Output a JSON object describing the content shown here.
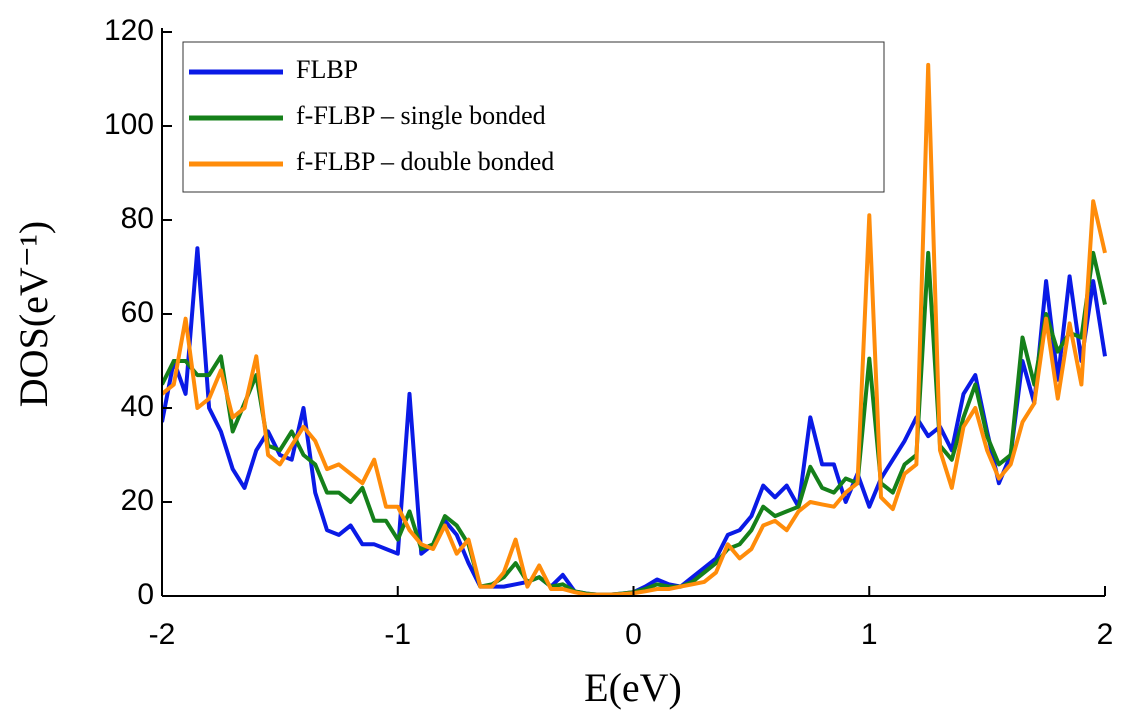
{
  "chart_data": {
    "type": "line",
    "xlabel": "E(eV)",
    "ylabel": "DOS(eV⁻¹)",
    "x": [
      -2,
      -1.95,
      -1.9,
      -1.85,
      -1.8,
      -1.75,
      -1.7,
      -1.65,
      -1.6,
      -1.55,
      -1.5,
      -1.45,
      -1.4,
      -1.35,
      -1.3,
      -1.25,
      -1.2,
      -1.15,
      -1.1,
      -1.05,
      -1,
      -0.95,
      -0.9,
      -0.85,
      -0.8,
      -0.75,
      -0.7,
      -0.65,
      -0.6,
      -0.55,
      -0.5,
      -0.45,
      -0.4,
      -0.35,
      -0.3,
      -0.25,
      -0.2,
      -0.15,
      -0.1,
      -0.05,
      0,
      0.05,
      0.1,
      0.15,
      0.2,
      0.25,
      0.3,
      0.35,
      0.4,
      0.45,
      0.5,
      0.55,
      0.6,
      0.65,
      0.7,
      0.75,
      0.8,
      0.85,
      0.9,
      0.95,
      1,
      1.05,
      1.1,
      1.15,
      1.2,
      1.25,
      1.3,
      1.35,
      1.4,
      1.45,
      1.5,
      1.55,
      1.6,
      1.65,
      1.7,
      1.75,
      1.8,
      1.85,
      1.9,
      1.95,
      2
    ],
    "series": [
      {
        "name": "FLBP",
        "color": "#0a1ae6",
        "values": [
          37,
          50,
          43,
          74,
          40,
          35,
          27,
          23,
          31,
          35,
          30,
          29,
          40,
          22,
          14,
          13,
          15,
          11,
          11,
          10,
          9,
          43,
          9,
          11,
          16,
          13,
          7,
          2,
          2,
          2,
          2.5,
          3,
          4,
          2,
          4.5,
          1,
          0.5,
          0.3,
          0.3,
          0.5,
          0.8,
          2,
          3.5,
          2.5,
          2,
          4,
          6,
          8,
          13,
          14,
          17,
          23.5,
          21,
          23.5,
          19,
          38,
          28,
          28,
          20,
          26,
          19,
          25,
          29,
          33,
          38,
          34,
          36,
          31,
          43,
          47,
          35,
          24,
          30,
          50,
          41,
          67,
          46,
          68,
          50,
          67,
          51
        ]
      },
      {
        "name": "f-FLBP – single bonded",
        "color": "#15801a",
        "values": [
          45,
          50,
          50,
          47,
          47,
          51,
          35,
          41,
          47,
          32,
          31,
          35,
          30,
          28,
          22,
          22,
          20,
          23,
          16,
          16,
          12,
          18,
          10,
          11,
          17,
          15,
          11,
          2,
          2.5,
          4,
          7,
          3,
          4,
          2,
          2.5,
          1,
          0.5,
          0.3,
          0.3,
          0.5,
          0.8,
          1.5,
          2.5,
          2,
          2,
          3,
          5,
          7,
          10,
          11,
          14,
          19,
          17,
          18,
          19,
          27.5,
          23,
          22,
          25,
          24,
          50.5,
          24,
          22,
          28,
          30,
          73,
          32,
          29,
          38,
          45,
          34,
          28,
          30,
          55,
          45,
          60,
          52,
          56,
          55,
          73,
          62
        ]
      },
      {
        "name": "f-FLBP – double bonded",
        "color": "#ff8c0a",
        "values": [
          43,
          45,
          59,
          40,
          42,
          48,
          38,
          40,
          51,
          30,
          28,
          32,
          36,
          33,
          27,
          28,
          26,
          24,
          29,
          19,
          19,
          14,
          11,
          10,
          15,
          9,
          12,
          2,
          2,
          5,
          12,
          2,
          6.5,
          1.5,
          1.5,
          0.8,
          0.3,
          0.3,
          0.3,
          0.4,
          0.6,
          1,
          1.5,
          1.5,
          2,
          2.5,
          3,
          5,
          11,
          8,
          10,
          15,
          16,
          14,
          18,
          20,
          19.5,
          19,
          22,
          24,
          81,
          21,
          18.5,
          26,
          28,
          113,
          31,
          23,
          36,
          40,
          31,
          25,
          28,
          37,
          41,
          59,
          42,
          58,
          45,
          84,
          73
        ]
      }
    ],
    "xlim": [
      -2,
      2
    ],
    "xticks": [
      -2,
      -1,
      0,
      1,
      2
    ],
    "ylim": [
      0,
      120
    ],
    "yticks": [
      0,
      20,
      40,
      60,
      80,
      100,
      120
    ],
    "legend": "upper-left"
  }
}
